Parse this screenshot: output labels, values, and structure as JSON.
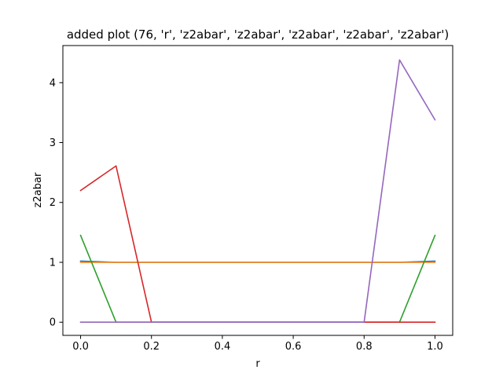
{
  "chart_data": {
    "type": "line",
    "title": "added plot (76, 'r', 'z2abar', 'z2abar', 'z2abar', 'z2abar', 'z2abar')",
    "xlabel": "r",
    "ylabel": "z2abar",
    "xlim": [
      -0.05,
      1.05
    ],
    "ylim": [
      -0.22,
      4.62
    ],
    "xticks": [
      0.0,
      0.2,
      0.4,
      0.6,
      0.8,
      1.0
    ],
    "xtick_labels": [
      "0.0",
      "0.2",
      "0.4",
      "0.6",
      "0.8",
      "1.0"
    ],
    "yticks": [
      0,
      1,
      2,
      3,
      4
    ],
    "ytick_labels": [
      "0",
      "1",
      "2",
      "3",
      "4"
    ],
    "grid": false,
    "legend": false,
    "x": [
      0.0,
      0.1,
      0.2,
      0.3,
      0.4,
      0.5,
      0.6,
      0.7,
      0.8,
      0.9,
      1.0
    ],
    "series": [
      {
        "color": "#1f77b4",
        "values": [
          1.02,
          1.0,
          1.0,
          1.0,
          1.0,
          1.0,
          1.0,
          1.0,
          1.0,
          1.0,
          1.02
        ]
      },
      {
        "color": "#ff7f0e",
        "values": [
          1.0,
          1.0,
          1.0,
          1.0,
          1.0,
          1.0,
          1.0,
          1.0,
          1.0,
          1.0,
          1.0
        ]
      },
      {
        "color": "#2ca02c",
        "values": [
          1.45,
          0.0,
          0.0,
          0.0,
          0.0,
          0.0,
          0.0,
          0.0,
          0.0,
          0.0,
          1.45
        ]
      },
      {
        "color": "#d62728",
        "values": [
          2.2,
          2.61,
          0.0,
          0.0,
          0.0,
          0.0,
          0.0,
          0.0,
          0.0,
          0.0,
          0.0
        ]
      },
      {
        "color": "#9467bd",
        "values": [
          0.0,
          0.0,
          0.0,
          0.0,
          0.0,
          0.0,
          0.0,
          0.0,
          0.0,
          4.38,
          3.38
        ]
      }
    ]
  }
}
